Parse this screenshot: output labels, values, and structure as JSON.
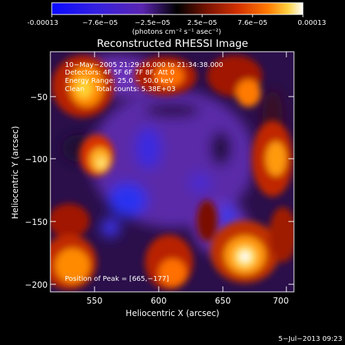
{
  "colorbar": {
    "ticks": [
      "-0.00013",
      "−7.6e−05",
      "−2.5e−05",
      "2.5e−05",
      "7.6e−05",
      "0.00013"
    ],
    "units": "(photons cm⁻² s⁻¹ asec⁻²)",
    "colors": [
      "#1010ff",
      "#3c1fd8",
      "#5d28b4",
      "#000000",
      "#7a1400",
      "#d23000",
      "#ff7a00",
      "#ffcc20",
      "#ffffff"
    ]
  },
  "image": {
    "title": "Reconstructed RHESSI Image",
    "annotation": {
      "line1": "10−May−2005 21:29:16.000 to 21:34:38.000",
      "line2": "Detectors: 4F 5F 6F 7F 8F, Att 0",
      "line3": "Energy Range: 25.0 − 50.0 keV",
      "line4": "Clean     Total counts: 5.38E+03"
    },
    "peak_label": "Position of Peak = [665,−177]",
    "xlabel": "Heliocentric X (arcsec)",
    "ylabel": "Heliocentric Y (arcsec)",
    "xticks": [
      "550",
      "600",
      "650",
      "700"
    ],
    "yticks": [
      "−50",
      "−100",
      "−150",
      "−200"
    ]
  },
  "footer": {
    "timestamp": "5−Jul−2013 09:23"
  }
}
